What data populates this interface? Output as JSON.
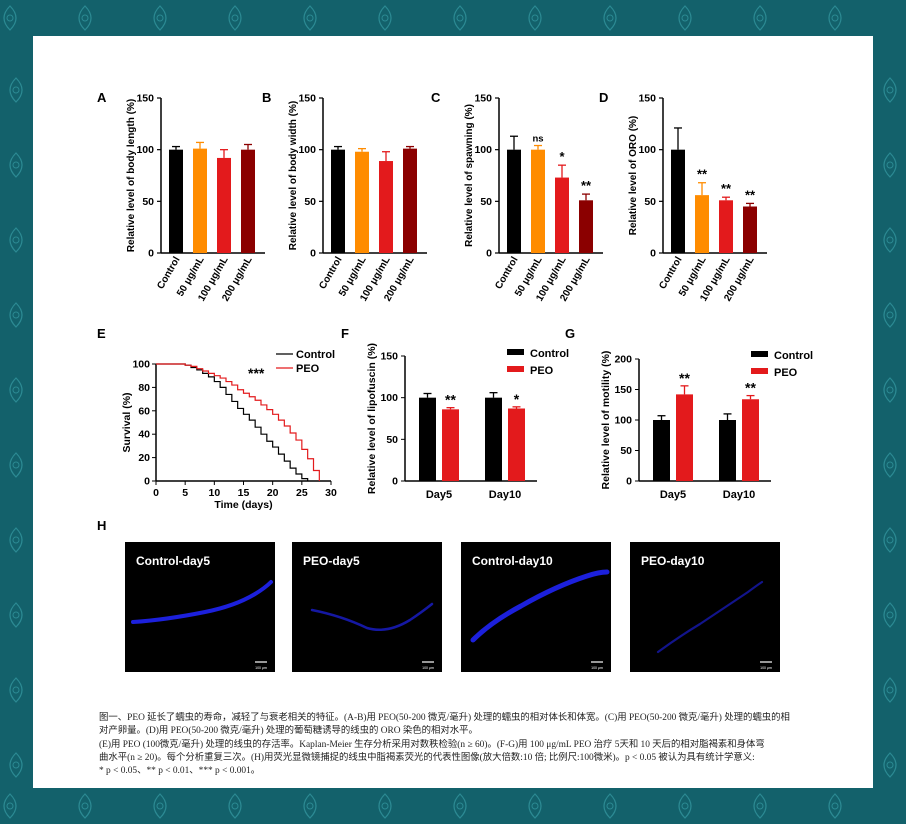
{
  "colors": {
    "background": "#13616b",
    "control": "#000000",
    "c50": "#ff8c00",
    "c100": "#e31a1c",
    "c200": "#8b0000",
    "peo": "#e31a1c",
    "fluor": "#1e22e8"
  },
  "icons": [
    "leaf-ornament-icon"
  ],
  "chart_data": [
    {
      "panel": "A",
      "type": "bar",
      "categories": [
        "Control",
        "50 μg/mL",
        "100 μg/mL",
        "200 μg/mL"
      ],
      "values": [
        100,
        101,
        92,
        100
      ],
      "errors": [
        3,
        6,
        8,
        5
      ],
      "ylabel": "Relative level of body length (%)",
      "ylim": [
        0,
        150
      ],
      "ticks": [
        0,
        50,
        100,
        150
      ],
      "sig": [
        "",
        "",
        "",
        ""
      ]
    },
    {
      "panel": "B",
      "type": "bar",
      "categories": [
        "Control",
        "50 μg/mL",
        "100 μg/mL",
        "200 μg/mL"
      ],
      "values": [
        100,
        98,
        89,
        101
      ],
      "errors": [
        3,
        3,
        9,
        2
      ],
      "ylabel": "Relative level of body width (%)",
      "ylim": [
        0,
        150
      ],
      "ticks": [
        0,
        50,
        100,
        150
      ],
      "sig": [
        "",
        "",
        "",
        ""
      ]
    },
    {
      "panel": "C",
      "type": "bar",
      "categories": [
        "Control",
        "50 μg/mL",
        "100 μg/mL",
        "200 μg/mL"
      ],
      "values": [
        100,
        100,
        73,
        51
      ],
      "errors": [
        13,
        4,
        12,
        6
      ],
      "ylabel": "Relative level of spawning (%)",
      "ylim": [
        0,
        150
      ],
      "ticks": [
        0,
        50,
        100,
        150
      ],
      "sig": [
        "",
        "ns",
        "*",
        "**"
      ]
    },
    {
      "panel": "D",
      "type": "bar",
      "categories": [
        "Control",
        "50 μg/mL",
        "100 μg/mL",
        "200 μg/mL"
      ],
      "values": [
        100,
        56,
        51,
        45
      ],
      "errors": [
        21,
        12,
        3,
        3
      ],
      "ylabel": "Relative level of ORO (%)",
      "ylim": [
        0,
        150
      ],
      "ticks": [
        0,
        50,
        100,
        150
      ],
      "sig": [
        "",
        "**",
        "**",
        "**"
      ]
    },
    {
      "panel": "E",
      "type": "line",
      "xlabel": "Time (days)",
      "ylabel": "Survival (%)",
      "xlim": [
        0,
        30
      ],
      "ylim": [
        0,
        100
      ],
      "xticks": [
        0,
        5,
        10,
        15,
        20,
        25,
        30
      ],
      "yticks": [
        0,
        20,
        40,
        60,
        80,
        100
      ],
      "sig": "***",
      "series": [
        {
          "name": "Control",
          "x": [
            0,
            4,
            5,
            6,
            7,
            8,
            9,
            10,
            11,
            12,
            13,
            14,
            15,
            16,
            17,
            18,
            19,
            20,
            21,
            22,
            23,
            24,
            25,
            26
          ],
          "y": [
            100,
            100,
            99,
            97,
            95,
            92,
            89,
            85,
            80,
            74,
            68,
            62,
            57,
            52,
            46,
            40,
            34,
            29,
            23,
            17,
            11,
            6,
            2,
            0
          ]
        },
        {
          "name": "PEO",
          "x": [
            0,
            4,
            5,
            6,
            7,
            8,
            9,
            10,
            11,
            12,
            13,
            14,
            15,
            16,
            17,
            18,
            19,
            20,
            21,
            22,
            23,
            24,
            25,
            26,
            27,
            28
          ],
          "y": [
            100,
            100,
            99,
            98,
            96,
            94,
            92,
            90,
            88,
            85,
            82,
            78,
            75,
            72,
            69,
            65,
            61,
            57,
            52,
            47,
            41,
            35,
            27,
            19,
            9,
            0
          ]
        }
      ]
    },
    {
      "panel": "F",
      "type": "bar",
      "categories": [
        "Day5",
        "Day10"
      ],
      "ylabel": "Relative level of lipofuscin (%)",
      "ylim": [
        0,
        150
      ],
      "ticks": [
        0,
        50,
        100,
        150
      ],
      "series": [
        {
          "name": "Control",
          "values": [
            100,
            100
          ],
          "errors": [
            5,
            6
          ]
        },
        {
          "name": "PEO",
          "values": [
            86,
            87
          ],
          "errors": [
            2,
            2
          ]
        }
      ],
      "sig": [
        "**",
        "*"
      ]
    },
    {
      "panel": "G",
      "type": "bar",
      "categories": [
        "Day5",
        "Day10"
      ],
      "ylabel": "Relative level of motility (%)",
      "ylim": [
        0,
        200
      ],
      "ticks": [
        0,
        50,
        100,
        150,
        200
      ],
      "series": [
        {
          "name": "Control",
          "values": [
            100,
            100
          ],
          "errors": [
            7,
            10
          ]
        },
        {
          "name": "PEO",
          "values": [
            142,
            134
          ],
          "errors": [
            14,
            6
          ]
        }
      ],
      "sig": [
        "**",
        "**"
      ]
    }
  ],
  "panels_h": {
    "label": "H",
    "images": [
      {
        "title": "Control-day5"
      },
      {
        "title": "PEO-day5"
      },
      {
        "title": "Control-day10"
      },
      {
        "title": "PEO-day10"
      }
    ],
    "scale_text": "100 μm"
  },
  "caption": [
    "图一、PEO 延长了蠕虫的寿命，减轻了与衰老相关的特征。(A-B)用 PEO(50-200 微克/毫升) 处理的蠕虫的相对体长和体宽。(C)用 PEO(50-200 微克/毫升) 处理的蠕虫的相",
    "对产卵量。(D)用 PEO(50-200 微克/毫升) 处理的葡萄糖诱导的线虫的 ORO 染色的相对水平。",
    "(E)用 PEO (100微克/毫升) 处理的线虫的存活率。Kaplan-Meier 生存分析采用对数秩检验(n ≥ 60)。(F-G)用 100 μg/mL PEO 治疗 5天和 10 天后的相对脂褐素和身体弯",
    "曲水平(n ≥ 20)。每个分析重复三次。(H)用荧光显微镜捕捉的线虫中脂褐素荧光的代表性图像(放大倍数:10 倍; 比例尺:100微米)。p < 0.05 被认为具有统计学意义:",
    "* p < 0.05、** p < 0.01、*** p < 0.001。"
  ]
}
